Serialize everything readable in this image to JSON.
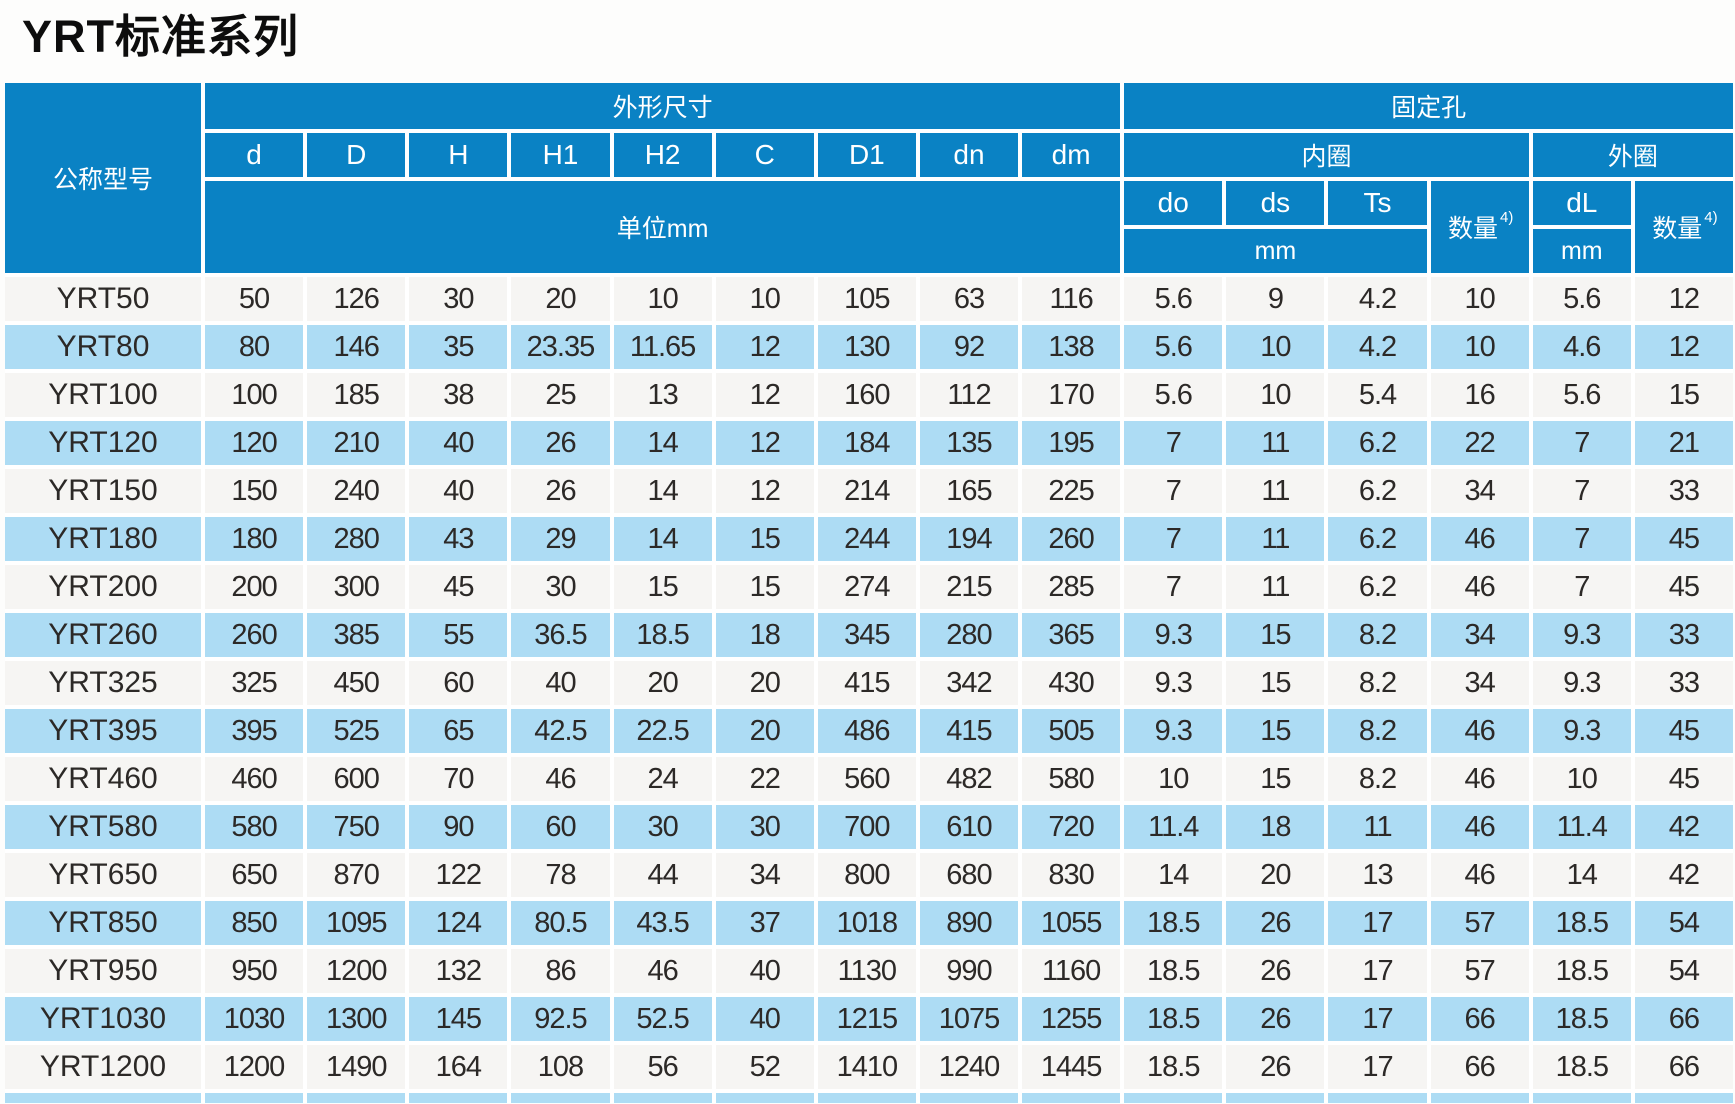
{
  "title": "YRT标准系列",
  "colors": {
    "header_blue": "#0a82c4",
    "row_light_blue": "#addcf4",
    "row_plain": "#f6f5f3",
    "grid_line_white": "#ffffff",
    "text_dark": "#2c2927",
    "title_black": "#0d0d0d",
    "header_text": "#ffffff"
  },
  "table": {
    "header": {
      "model_col": "公称型号",
      "dims_group": "外形尺寸",
      "holes_group": "固定孔",
      "dim_cols": [
        "d",
        "D",
        "H",
        "H1",
        "H2",
        "C",
        "D1",
        "dn",
        "dm"
      ],
      "unit_row": "单位mm",
      "inner_ring": "内圈",
      "outer_ring": "外圈",
      "inner_cols": [
        "do",
        "ds",
        "Ts"
      ],
      "outer_col": "dL",
      "quantity_label": "数量",
      "quantity_sup": "4)",
      "mm": "mm"
    },
    "rows": [
      {
        "model": "YRT50",
        "values": [
          "50",
          "126",
          "30",
          "20",
          "10",
          "10",
          "105",
          "63",
          "116",
          "5.6",
          "9",
          "4.2",
          "10",
          "5.6",
          "12"
        ]
      },
      {
        "model": "YRT80",
        "values": [
          "80",
          "146",
          "35",
          "23.35",
          "11.65",
          "12",
          "130",
          "92",
          "138",
          "5.6",
          "10",
          "4.2",
          "10",
          "4.6",
          "12"
        ]
      },
      {
        "model": "YRT100",
        "values": [
          "100",
          "185",
          "38",
          "25",
          "13",
          "12",
          "160",
          "112",
          "170",
          "5.6",
          "10",
          "5.4",
          "16",
          "5.6",
          "15"
        ]
      },
      {
        "model": "YRT120",
        "values": [
          "120",
          "210",
          "40",
          "26",
          "14",
          "12",
          "184",
          "135",
          "195",
          "7",
          "11",
          "6.2",
          "22",
          "7",
          "21"
        ]
      },
      {
        "model": "YRT150",
        "values": [
          "150",
          "240",
          "40",
          "26",
          "14",
          "12",
          "214",
          "165",
          "225",
          "7",
          "11",
          "6.2",
          "34",
          "7",
          "33"
        ]
      },
      {
        "model": "YRT180",
        "values": [
          "180",
          "280",
          "43",
          "29",
          "14",
          "15",
          "244",
          "194",
          "260",
          "7",
          "11",
          "6.2",
          "46",
          "7",
          "45"
        ]
      },
      {
        "model": "YRT200",
        "values": [
          "200",
          "300",
          "45",
          "30",
          "15",
          "15",
          "274",
          "215",
          "285",
          "7",
          "11",
          "6.2",
          "46",
          "7",
          "45"
        ]
      },
      {
        "model": "YRT260",
        "values": [
          "260",
          "385",
          "55",
          "36.5",
          "18.5",
          "18",
          "345",
          "280",
          "365",
          "9.3",
          "15",
          "8.2",
          "34",
          "9.3",
          "33"
        ]
      },
      {
        "model": "YRT325",
        "values": [
          "325",
          "450",
          "60",
          "40",
          "20",
          "20",
          "415",
          "342",
          "430",
          "9.3",
          "15",
          "8.2",
          "34",
          "9.3",
          "33"
        ]
      },
      {
        "model": "YRT395",
        "values": [
          "395",
          "525",
          "65",
          "42.5",
          "22.5",
          "20",
          "486",
          "415",
          "505",
          "9.3",
          "15",
          "8.2",
          "46",
          "9.3",
          "45"
        ]
      },
      {
        "model": "YRT460",
        "values": [
          "460",
          "600",
          "70",
          "46",
          "24",
          "22",
          "560",
          "482",
          "580",
          "10",
          "15",
          "8.2",
          "46",
          "10",
          "45"
        ]
      },
      {
        "model": "YRT580",
        "values": [
          "580",
          "750",
          "90",
          "60",
          "30",
          "30",
          "700",
          "610",
          "720",
          "11.4",
          "18",
          "11",
          "46",
          "11.4",
          "42"
        ]
      },
      {
        "model": "YRT650",
        "values": [
          "650",
          "870",
          "122",
          "78",
          "44",
          "34",
          "800",
          "680",
          "830",
          "14",
          "20",
          "13",
          "46",
          "14",
          "42"
        ]
      },
      {
        "model": "YRT850",
        "values": [
          "850",
          "1095",
          "124",
          "80.5",
          "43.5",
          "37",
          "1018",
          "890",
          "1055",
          "18.5",
          "26",
          "17",
          "57",
          "18.5",
          "54"
        ]
      },
      {
        "model": "YRT950",
        "values": [
          "950",
          "1200",
          "132",
          "86",
          "46",
          "40",
          "1130",
          "990",
          "1160",
          "18.5",
          "26",
          "17",
          "57",
          "18.5",
          "54"
        ]
      },
      {
        "model": "YRT1030",
        "values": [
          "1030",
          "1300",
          "145",
          "92.5",
          "52.5",
          "40",
          "1215",
          "1075",
          "1255",
          "18.5",
          "26",
          "17",
          "66",
          "18.5",
          "66"
        ]
      },
      {
        "model": "YRT1200",
        "values": [
          "1200",
          "1490",
          "164",
          "108",
          "56",
          "52",
          "1410",
          "1240",
          "1445",
          "18.5",
          "26",
          "17",
          "66",
          "18.5",
          "66"
        ]
      }
    ]
  }
}
